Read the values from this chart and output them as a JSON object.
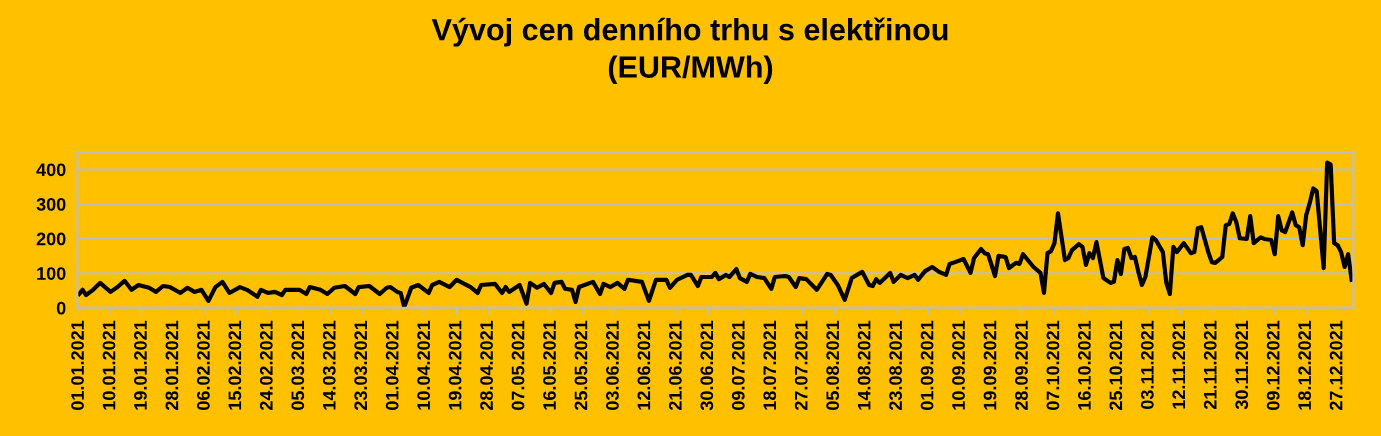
{
  "chart_data": {
    "type": "line",
    "title": "Vývoj cen denního trhu s elektřinou\n(EUR/MWh)",
    "series": [
      {
        "color": "#000000",
        "x": [
          "2021-01-01",
          "2021-01-02",
          "2021-01-03",
          "2021-01-05",
          "2021-01-07",
          "2021-01-10",
          "2021-01-12",
          "2021-01-14",
          "2021-01-16",
          "2021-01-18",
          "2021-01-21",
          "2021-01-23",
          "2021-01-25",
          "2021-01-27",
          "2021-01-30",
          "2021-02-01",
          "2021-02-03",
          "2021-02-05",
          "2021-02-07",
          "2021-02-09",
          "2021-02-11",
          "2021-02-13",
          "2021-02-16",
          "2021-02-18",
          "2021-02-21",
          "2021-02-22",
          "2021-02-24",
          "2021-02-26",
          "2021-02-28",
          "2021-03-01",
          "2021-03-05",
          "2021-03-07",
          "2021-03-08",
          "2021-03-11",
          "2021-03-13",
          "2021-03-15",
          "2021-03-18",
          "2021-03-21",
          "2021-03-22",
          "2021-03-25",
          "2021-03-28",
          "2021-03-30",
          "2021-03-31",
          "2021-04-02",
          "2021-04-03",
          "2021-04-04",
          "2021-04-06",
          "2021-04-08",
          "2021-04-11",
          "2021-04-12",
          "2021-04-14",
          "2021-04-17",
          "2021-04-19",
          "2021-04-23",
          "2021-04-25",
          "2021-04-26",
          "2021-04-30",
          "2021-05-02",
          "2021-05-03",
          "2021-05-04",
          "2021-05-07",
          "2021-05-09",
          "2021-05-10",
          "2021-05-12",
          "2021-05-14",
          "2021-05-16",
          "2021-05-17",
          "2021-05-19",
          "2021-05-20",
          "2021-05-22",
          "2021-05-23",
          "2021-05-24",
          "2021-05-28",
          "2021-05-30",
          "2021-05-31",
          "2021-06-02",
          "2021-06-04",
          "2021-06-06",
          "2021-06-07",
          "2021-06-11",
          "2021-06-13",
          "2021-06-15",
          "2021-06-18",
          "2021-06-19",
          "2021-06-21",
          "2021-06-24",
          "2021-06-25",
          "2021-06-27",
          "2021-06-28",
          "2021-07-01",
          "2021-07-02",
          "2021-07-03",
          "2021-07-05",
          "2021-07-06",
          "2021-07-08",
          "2021-07-09",
          "2021-07-11",
          "2021-07-12",
          "2021-07-14",
          "2021-07-16",
          "2021-07-18",
          "2021-07-19",
          "2021-07-22",
          "2021-07-23",
          "2021-07-25",
          "2021-07-26",
          "2021-07-28",
          "2021-07-31",
          "2021-08-03",
          "2021-08-04",
          "2021-08-06",
          "2021-08-08",
          "2021-08-10",
          "2021-08-13",
          "2021-08-15",
          "2021-08-16",
          "2021-08-17",
          "2021-08-18",
          "2021-08-21",
          "2021-08-22",
          "2021-08-24",
          "2021-08-26",
          "2021-08-28",
          "2021-08-29",
          "2021-08-31",
          "2021-09-02",
          "2021-09-04",
          "2021-09-06",
          "2021-09-07",
          "2021-09-08",
          "2021-09-11",
          "2021-09-13",
          "2021-09-14",
          "2021-09-16",
          "2021-09-17",
          "2021-09-18",
          "2021-09-20",
          "2021-09-21",
          "2021-09-23",
          "2021-09-24",
          "2021-09-26",
          "2021-09-27",
          "2021-09-28",
          "2021-10-01",
          "2021-10-03",
          "2021-10-04",
          "2021-10-05",
          "2021-10-06",
          "2021-10-07",
          "2021-10-08",
          "2021-10-10",
          "2021-10-11",
          "2021-10-12",
          "2021-10-14",
          "2021-10-15",
          "2021-10-16",
          "2021-10-17",
          "2021-10-18",
          "2021-10-19",
          "2021-10-21",
          "2021-10-23",
          "2021-10-24",
          "2021-10-25",
          "2021-10-26",
          "2021-10-27",
          "2021-10-28",
          "2021-10-29",
          "2021-10-30",
          "2021-10-31",
          "2021-11-01",
          "2021-11-02",
          "2021-11-04",
          "2021-11-05",
          "2021-11-07",
          "2021-11-08",
          "2021-11-09",
          "2021-11-10",
          "2021-11-11",
          "2021-11-13",
          "2021-11-15",
          "2021-11-16",
          "2021-11-17",
          "2021-11-18",
          "2021-11-20",
          "2021-11-21",
          "2021-11-22",
          "2021-11-24",
          "2021-11-25",
          "2021-11-26",
          "2021-11-27",
          "2021-11-28",
          "2021-11-29",
          "2021-12-01",
          "2021-12-02",
          "2021-12-03",
          "2021-12-05",
          "2021-12-06",
          "2021-12-08",
          "2021-12-09",
          "2021-12-10",
          "2021-12-11",
          "2021-12-12",
          "2021-12-14",
          "2021-12-15",
          "2021-12-16",
          "2021-12-17",
          "2021-12-18",
          "2021-12-19",
          "2021-12-20",
          "2021-12-21",
          "2021-12-23",
          "2021-12-24",
          "2021-12-25",
          "2021-12-26",
          "2021-12-27",
          "2021-12-28",
          "2021-12-29",
          "2021-12-30",
          "2021-12-31"
        ],
        "values": [
          40,
          52,
          37,
          52,
          72,
          46,
          60,
          78,
          52,
          66,
          58,
          46,
          63,
          60,
          43,
          58,
          46,
          52,
          20,
          60,
          75,
          43,
          60,
          52,
          32,
          52,
          43,
          46,
          37,
          52,
          52,
          40,
          60,
          52,
          40,
          58,
          63,
          40,
          60,
          63,
          40,
          58,
          60,
          46,
          43,
          2,
          58,
          66,
          43,
          66,
          75,
          60,
          81,
          60,
          43,
          66,
          69,
          43,
          60,
          46,
          66,
          12,
          72,
          58,
          69,
          43,
          72,
          75,
          55,
          52,
          17,
          60,
          75,
          40,
          69,
          60,
          72,
          55,
          81,
          75,
          20,
          81,
          81,
          58,
          81,
          95,
          95,
          63,
          89,
          89,
          101,
          83,
          95,
          89,
          112,
          86,
          75,
          98,
          89,
          86,
          55,
          89,
          92,
          89,
          60,
          86,
          83,
          52,
          98,
          95,
          66,
          23,
          86,
          104,
          66,
          63,
          83,
          72,
          101,
          75,
          95,
          86,
          95,
          81,
          106,
          118,
          104,
          95,
          127,
          130,
          141,
          101,
          144,
          170,
          158,
          155,
          92,
          150,
          147,
          115,
          130,
          127,
          155,
          118,
          101,
          43,
          158,
          164,
          187,
          273,
          138,
          144,
          167,
          184,
          176,
          124,
          158,
          144,
          190,
          86,
          72,
          75,
          138,
          98,
          170,
          173,
          144,
          147,
          104,
          66,
          89,
          204,
          196,
          161,
          72,
          40,
          176,
          161,
          187,
          158,
          161,
          230,
          233,
          161,
          132,
          130,
          147,
          239,
          242,
          273,
          248,
          201,
          199,
          265,
          187,
          204,
          199,
          196,
          155,
          265,
          224,
          219,
          276,
          239,
          233,
          181,
          268,
          302,
          345,
          337,
          115,
          420,
          414,
          187,
          181,
          161,
          118,
          155,
          81
        ]
      }
    ],
    "xlim": [
      "2020-12-31T12:00",
      "2021-12-31T12:00"
    ],
    "xticks": [
      {
        "value": "2021-01-01",
        "label": "01.01.2021"
      },
      {
        "value": "2021-01-10",
        "label": "10.01.2021"
      },
      {
        "value": "2021-01-19",
        "label": "19.01.2021"
      },
      {
        "value": "2021-01-28",
        "label": "28.01.2021"
      },
      {
        "value": "2021-02-06",
        "label": "06.02.2021"
      },
      {
        "value": "2021-02-15",
        "label": "15.02.2021"
      },
      {
        "value": "2021-02-24",
        "label": "24.02.2021"
      },
      {
        "value": "2021-03-05",
        "label": "05.03.2021"
      },
      {
        "value": "2021-03-14",
        "label": "14.03.2021"
      },
      {
        "value": "2021-03-23",
        "label": "23.03.2021"
      },
      {
        "value": "2021-04-01",
        "label": "01.04.2021"
      },
      {
        "value": "2021-04-10",
        "label": "10.04.2021"
      },
      {
        "value": "2021-04-19",
        "label": "19.04.2021"
      },
      {
        "value": "2021-04-28",
        "label": "28.04.2021"
      },
      {
        "value": "2021-05-07",
        "label": "07.05.2021"
      },
      {
        "value": "2021-05-16",
        "label": "16.05.2021"
      },
      {
        "value": "2021-05-25",
        "label": "25.05.2021"
      },
      {
        "value": "2021-06-03",
        "label": "03.06.2021"
      },
      {
        "value": "2021-06-12",
        "label": "12.06.2021"
      },
      {
        "value": "2021-06-21",
        "label": "21.06.2021"
      },
      {
        "value": "2021-06-30",
        "label": "30.06.2021"
      },
      {
        "value": "2021-07-09",
        "label": "09.07.2021"
      },
      {
        "value": "2021-07-18",
        "label": "18.07.2021"
      },
      {
        "value": "2021-07-27",
        "label": "27.07.2021"
      },
      {
        "value": "2021-08-05",
        "label": "05.08.2021"
      },
      {
        "value": "2021-08-14",
        "label": "14.08.2021"
      },
      {
        "value": "2021-08-23",
        "label": "23.08.2021"
      },
      {
        "value": "2021-09-01",
        "label": "01.09.2021"
      },
      {
        "value": "2021-09-10",
        "label": "10.09.2021"
      },
      {
        "value": "2021-09-19",
        "label": "19.09.2021"
      },
      {
        "value": "2021-09-28",
        "label": "28.09.2021"
      },
      {
        "value": "2021-10-07",
        "label": "07.10.2021"
      },
      {
        "value": "2021-10-16",
        "label": "16.10.2021"
      },
      {
        "value": "2021-10-25",
        "label": "25.10.2021"
      },
      {
        "value": "2021-11-03",
        "label": "03.11.2021"
      },
      {
        "value": "2021-11-12",
        "label": "12.11.2021"
      },
      {
        "value": "2021-11-21",
        "label": "21.11.2021"
      },
      {
        "value": "2021-11-30",
        "label": "30.11.2021"
      },
      {
        "value": "2021-12-09",
        "label": "09.12.2021"
      },
      {
        "value": "2021-12-18",
        "label": "18.12.2021"
      },
      {
        "value": "2021-12-27",
        "label": "27.12.2021"
      }
    ],
    "ylim": [
      0,
      450
    ],
    "yticks": [
      0,
      100,
      200,
      300,
      400
    ],
    "grid": "y",
    "legend": false,
    "marker": "none",
    "line_style": "solid"
  }
}
